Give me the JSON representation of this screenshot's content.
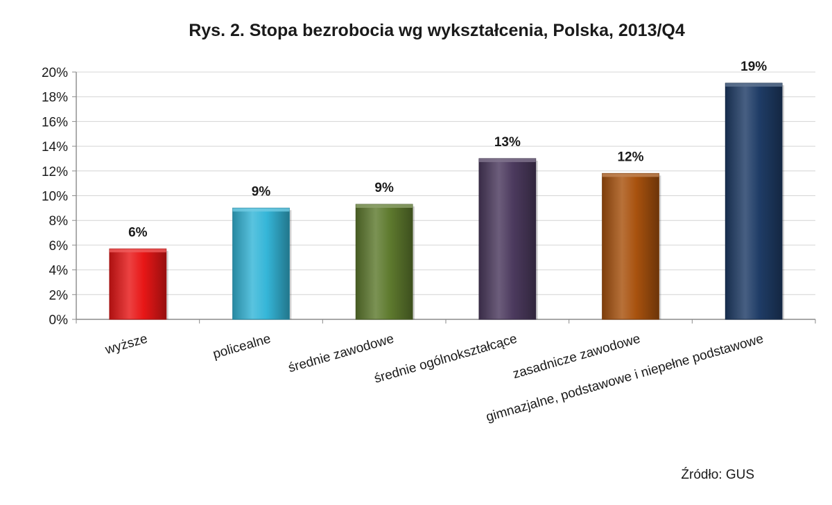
{
  "chart_data": {
    "type": "bar",
    "title": "Rys. 2. Stopa bezrobocia wg wykształcenia, Polska, 2013/Q4",
    "categories": [
      "wyższe",
      "policealne",
      "średnie zawodowe",
      "średnie ogólnokształcące",
      "zasadnicze zawodowe",
      "gimnazjalne, podstawowe i niepełne podstawowe"
    ],
    "values": [
      5.7,
      9.0,
      9.3,
      13.0,
      11.8,
      19.1
    ],
    "data_labels": [
      "6%",
      "9%",
      "9%",
      "13%",
      "12%",
      "19%"
    ],
    "colors": [
      "#e81717",
      "#35b6d8",
      "#5e7a2e",
      "#4c3a5e",
      "#a8520e",
      "#1f3c66"
    ],
    "ylim": [
      0,
      20
    ],
    "yticks": [
      "0%",
      "2%",
      "4%",
      "6%",
      "8%",
      "10%",
      "12%",
      "14%",
      "16%",
      "18%",
      "20%"
    ],
    "grid": true,
    "legend": "none",
    "source": "Źródło: GUS"
  }
}
